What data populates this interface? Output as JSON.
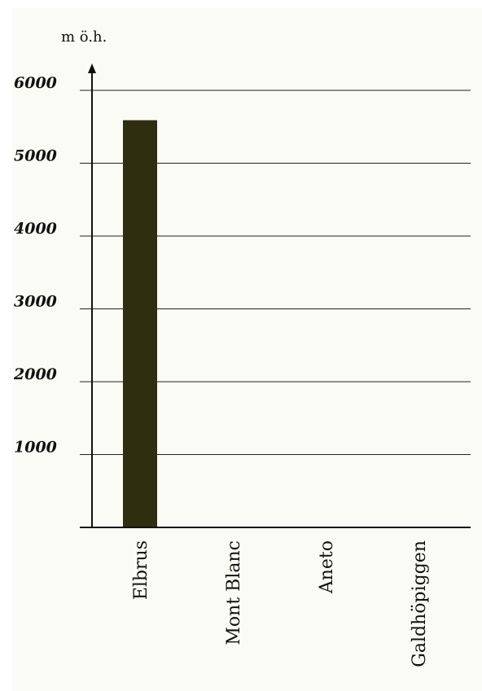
{
  "chart_data": {
    "type": "bar",
    "categories": [
      "Elbrus",
      "Mont Blanc",
      "Aneto",
      "Galdhöpiggen"
    ],
    "values": [
      5590,
      0,
      0,
      0
    ],
    "ylabel": "m ö.h.",
    "yticks": [
      1000,
      2000,
      3000,
      4000,
      5000,
      6000
    ],
    "ylim": [
      0,
      6400
    ],
    "grid": true,
    "bar_color": "#2f2f0f",
    "background": "#fbfbf5"
  }
}
